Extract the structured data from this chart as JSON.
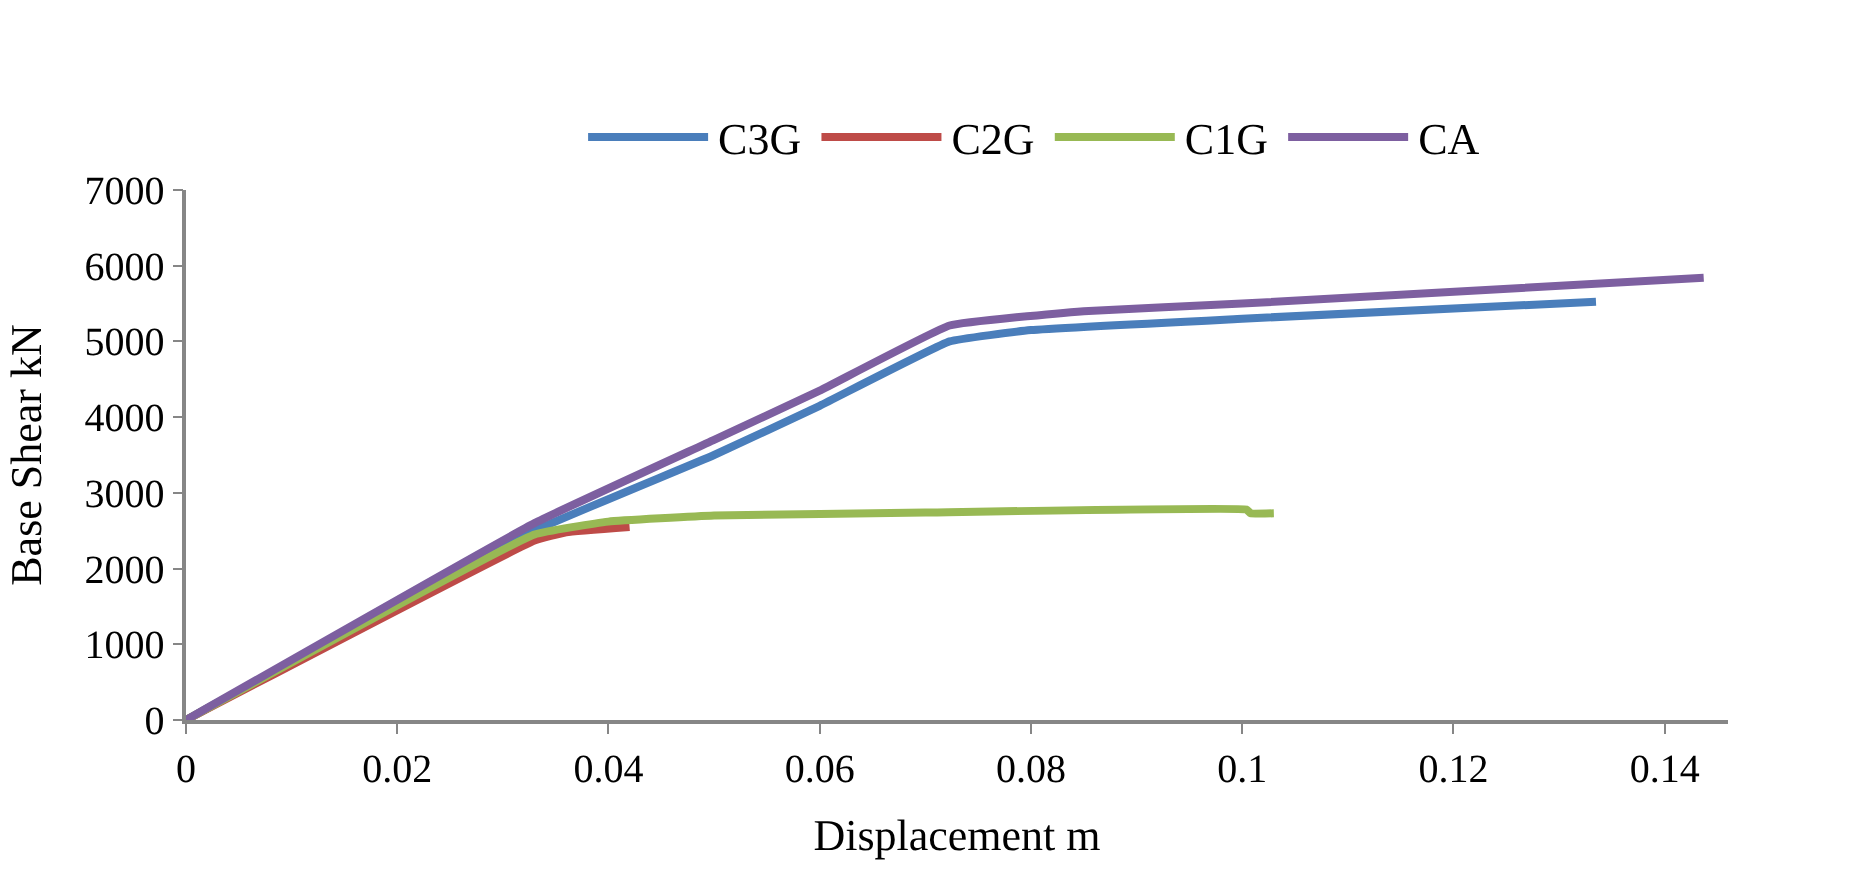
{
  "chart_data": {
    "type": "line",
    "xlabel": "Displacement m",
    "ylabel": "Base Shear kN",
    "xlim": [
      0,
      0.146
    ],
    "xticks": [
      0,
      0.02,
      0.04,
      0.06,
      0.08,
      0.1,
      0.12,
      0.14
    ],
    "ylim": [
      0,
      7000
    ],
    "yticks": [
      0,
      1000,
      2000,
      3000,
      4000,
      5000,
      6000,
      7000
    ],
    "legend": "top",
    "marker": "none",
    "line_style": "solid",
    "series": [
      {
        "name": "C3G",
        "color": "#4a7ebb",
        "x": [
          0,
          0.033,
          0.05,
          0.06,
          0.0723,
          0.08,
          0.1,
          0.1335
        ],
        "values": [
          0,
          2500,
          3500,
          4150,
          5000,
          5150,
          5300,
          5525
        ]
      },
      {
        "name": "C2G",
        "color": "#be4b48",
        "x": [
          0,
          0.033,
          0.036,
          0.042
        ],
        "values": [
          0,
          2370,
          2480,
          2550
        ]
      },
      {
        "name": "C1G",
        "color": "#98b954",
        "x": [
          0,
          0.033,
          0.04,
          0.05,
          0.07,
          0.1004,
          0.1008,
          0.103
        ],
        "values": [
          0,
          2450,
          2620,
          2700,
          2740,
          2780,
          2730,
          2730
        ]
      },
      {
        "name": "CA",
        "color": "#7d5fa0",
        "x": [
          0,
          0.033,
          0.05,
          0.06,
          0.0723,
          0.085,
          0.1,
          0.1437
        ],
        "values": [
          0,
          2600,
          3700,
          4350,
          5210,
          5400,
          5500,
          5840
        ]
      }
    ]
  }
}
